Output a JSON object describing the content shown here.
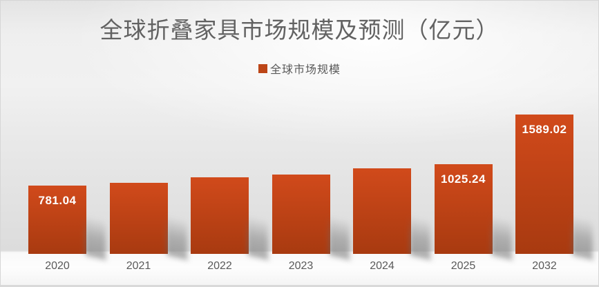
{
  "title": "全球折叠家具市场规模及预测（亿元）",
  "legend": {
    "label": "全球市场规模",
    "swatch_color": "#bc4517"
  },
  "colors": {
    "bar_top": "#d14a1b",
    "bar_bottom": "#a83a10",
    "title_text": "#626262",
    "axis_text": "#595959",
    "data_label_text": "#ffffff"
  },
  "chart_data": {
    "type": "bar",
    "title": "全球折叠家具市场规模及预测（亿元）",
    "series_name": "全球市场规模",
    "categories": [
      "2020",
      "2021",
      "2022",
      "2023",
      "2024",
      "2025",
      "2032"
    ],
    "values": [
      781.04,
      814,
      877,
      905,
      975,
      1025.24,
      1589.02
    ],
    "data_labels": [
      "781.04",
      "",
      "",
      "",
      "",
      "1025.24",
      "1589.02"
    ],
    "xlabel": "",
    "ylabel": "",
    "ylim": [
      0,
      1600
    ],
    "grid": false,
    "axes_visible": false,
    "legend_position": "top-center",
    "bar_color_top": "#d14a1b",
    "bar_color_bottom": "#a83a10"
  }
}
